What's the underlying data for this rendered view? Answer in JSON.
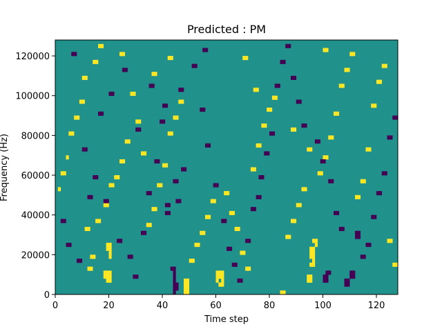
{
  "chart_data": {
    "type": "heatmap",
    "title": "Predicted : PM",
    "xlabel": "Time step",
    "ylabel": "Frequency (Hz)",
    "xlim": [
      0,
      128
    ],
    "ylim": [
      0,
      128000
    ],
    "x_ticks": [
      0,
      20,
      40,
      60,
      80,
      100,
      120
    ],
    "y_ticks": [
      0,
      20000,
      40000,
      60000,
      80000,
      100000,
      120000
    ],
    "x_tick_labels": [
      "0",
      "20",
      "40",
      "60",
      "80",
      "100",
      "120"
    ],
    "y_tick_labels": [
      "0",
      "20000",
      "40000",
      "60000",
      "80000",
      "100000",
      "120000"
    ],
    "rows": 64,
    "cols": 128,
    "background_value": 0,
    "colors": {
      "low": "#440154",
      "mid": "#21918c",
      "high": "#fde725"
    },
    "high_cells": [
      [
        19,
        5
      ],
      [
        20,
        5
      ],
      [
        19,
        4
      ],
      [
        20,
        4
      ],
      [
        18,
        5
      ],
      [
        18,
        4
      ],
      [
        19,
        3
      ],
      [
        20,
        3
      ],
      [
        60,
        5
      ],
      [
        61,
        5
      ],
      [
        62,
        5
      ],
      [
        60,
        4
      ],
      [
        61,
        4
      ],
      [
        62,
        4
      ],
      [
        60,
        3
      ],
      [
        62,
        3
      ],
      [
        61,
        2
      ],
      [
        62,
        2
      ],
      [
        95,
        11
      ],
      [
        96,
        11
      ],
      [
        95,
        10
      ],
      [
        96,
        10
      ],
      [
        95,
        9
      ],
      [
        96,
        9
      ],
      [
        96,
        8
      ],
      [
        95,
        7
      ],
      [
        96,
        7
      ],
      [
        94,
        4
      ],
      [
        95,
        4
      ],
      [
        94,
        3
      ],
      [
        95,
        3
      ],
      [
        96,
        13
      ],
      [
        97,
        13
      ],
      [
        97,
        12
      ],
      [
        19,
        12
      ],
      [
        20,
        12
      ],
      [
        19,
        11
      ],
      [
        20,
        11
      ],
      [
        20,
        10
      ],
      [
        20,
        9
      ],
      [
        13,
        9
      ],
      [
        14,
        9
      ],
      [
        12,
        6
      ],
      [
        13,
        6
      ],
      [
        11,
        16
      ],
      [
        12,
        16
      ],
      [
        15,
        18
      ],
      [
        16,
        18
      ],
      [
        18,
        22
      ],
      [
        19,
        22
      ],
      [
        20,
        27
      ],
      [
        21,
        27
      ],
      [
        22,
        29
      ],
      [
        23,
        29
      ],
      [
        24,
        33
      ],
      [
        25,
        33
      ],
      [
        26,
        38
      ],
      [
        27,
        38
      ],
      [
        28,
        50
      ],
      [
        29,
        50
      ],
      [
        30,
        43
      ],
      [
        31,
        43
      ],
      [
        32,
        35
      ],
      [
        33,
        35
      ],
      [
        34,
        17
      ],
      [
        35,
        17
      ],
      [
        36,
        21
      ],
      [
        37,
        21
      ],
      [
        38,
        27
      ],
      [
        39,
        27
      ],
      [
        40,
        32
      ],
      [
        41,
        32
      ],
      [
        42,
        40
      ],
      [
        43,
        40
      ],
      [
        44,
        44
      ],
      [
        45,
        44
      ],
      [
        46,
        48
      ],
      [
        47,
        48
      ],
      [
        48,
        2
      ],
      [
        49,
        2
      ],
      [
        48,
        3
      ],
      [
        49,
        3
      ],
      [
        48,
        1
      ],
      [
        49,
        1
      ],
      [
        48,
        0
      ],
      [
        49,
        0
      ],
      [
        50,
        8
      ],
      [
        51,
        8
      ],
      [
        52,
        12
      ],
      [
        53,
        12
      ],
      [
        54,
        15
      ],
      [
        55,
        15
      ],
      [
        56,
        19
      ],
      [
        57,
        19
      ],
      [
        58,
        23
      ],
      [
        59,
        23
      ],
      [
        63,
        25
      ],
      [
        64,
        25
      ],
      [
        65,
        20
      ],
      [
        66,
        20
      ],
      [
        67,
        16
      ],
      [
        68,
        16
      ],
      [
        69,
        10
      ],
      [
        70,
        10
      ],
      [
        71,
        6
      ],
      [
        72,
        6
      ],
      [
        73,
        31
      ],
      [
        74,
        31
      ],
      [
        75,
        37
      ],
      [
        76,
        37
      ],
      [
        77,
        42
      ],
      [
        78,
        42
      ],
      [
        79,
        46
      ],
      [
        80,
        46
      ],
      [
        81,
        49
      ],
      [
        82,
        49
      ],
      [
        84,
        0
      ],
      [
        85,
        0
      ],
      [
        86,
        14
      ],
      [
        87,
        14
      ],
      [
        88,
        18
      ],
      [
        89,
        18
      ],
      [
        90,
        22
      ],
      [
        91,
        22
      ],
      [
        92,
        26
      ],
      [
        93,
        26
      ],
      [
        98,
        30
      ],
      [
        99,
        30
      ],
      [
        100,
        34
      ],
      [
        101,
        34
      ],
      [
        102,
        39
      ],
      [
        103,
        39
      ],
      [
        104,
        45
      ],
      [
        105,
        45
      ],
      [
        106,
        52
      ],
      [
        107,
        52
      ],
      [
        108,
        56
      ],
      [
        109,
        56
      ],
      [
        110,
        60
      ],
      [
        111,
        60
      ],
      [
        112,
        24
      ],
      [
        113,
        24
      ],
      [
        114,
        28
      ],
      [
        115,
        28
      ],
      [
        116,
        36
      ],
      [
        117,
        36
      ],
      [
        118,
        47
      ],
      [
        119,
        47
      ],
      [
        120,
        53
      ],
      [
        121,
        53
      ],
      [
        122,
        57
      ],
      [
        123,
        57
      ],
      [
        124,
        13
      ],
      [
        125,
        13
      ],
      [
        126,
        7
      ],
      [
        127,
        7
      ],
      [
        5,
        40
      ],
      [
        6,
        40
      ],
      [
        7,
        44
      ],
      [
        8,
        44
      ],
      [
        9,
        48
      ],
      [
        10,
        48
      ],
      [
        2,
        30
      ],
      [
        3,
        30
      ],
      [
        4,
        34
      ],
      [
        1,
        26
      ],
      [
        14,
        58
      ],
      [
        15,
        58
      ],
      [
        16,
        62
      ],
      [
        17,
        62
      ],
      [
        10,
        54
      ],
      [
        11,
        54
      ],
      [
        24,
        60
      ],
      [
        25,
        60
      ],
      [
        36,
        55
      ],
      [
        37,
        55
      ],
      [
        42,
        59
      ],
      [
        43,
        59
      ],
      [
        70,
        59
      ],
      [
        71,
        59
      ],
      [
        74,
        51
      ],
      [
        75,
        51
      ],
      [
        88,
        41
      ],
      [
        89,
        41
      ],
      [
        94,
        36
      ],
      [
        95,
        36
      ],
      [
        100,
        61
      ],
      [
        101,
        61
      ]
    ],
    "low_cells": [
      [
        41,
        22
      ],
      [
        42,
        22
      ],
      [
        41,
        20
      ],
      [
        42,
        20
      ],
      [
        45,
        23
      ],
      [
        46,
        23
      ],
      [
        44,
        28
      ],
      [
        45,
        28
      ],
      [
        47,
        31
      ],
      [
        48,
        31
      ],
      [
        43,
        6
      ],
      [
        44,
        6
      ],
      [
        44,
        5
      ],
      [
        44,
        4
      ],
      [
        44,
        3
      ],
      [
        44,
        2
      ],
      [
        44,
        1
      ],
      [
        44,
        0
      ],
      [
        45,
        1
      ],
      [
        45,
        2
      ],
      [
        100,
        3
      ],
      [
        101,
        3
      ],
      [
        100,
        4
      ],
      [
        101,
        4
      ],
      [
        101,
        5
      ],
      [
        102,
        5
      ],
      [
        108,
        2
      ],
      [
        109,
        2
      ],
      [
        108,
        3
      ],
      [
        109,
        3
      ],
      [
        112,
        15
      ],
      [
        113,
        15
      ],
      [
        112,
        14
      ],
      [
        113,
        14
      ],
      [
        110,
        4
      ],
      [
        111,
        4
      ],
      [
        110,
        5
      ],
      [
        111,
        5
      ],
      [
        6,
        60
      ],
      [
        7,
        60
      ],
      [
        10,
        36
      ],
      [
        11,
        36
      ],
      [
        14,
        29
      ],
      [
        15,
        29
      ],
      [
        18,
        23
      ],
      [
        19,
        23
      ],
      [
        23,
        13
      ],
      [
        24,
        13
      ],
      [
        27,
        9
      ],
      [
        28,
        9
      ],
      [
        29,
        4
      ],
      [
        30,
        4
      ],
      [
        32,
        15
      ],
      [
        33,
        15
      ],
      [
        34,
        25
      ],
      [
        35,
        25
      ],
      [
        37,
        33
      ],
      [
        38,
        33
      ],
      [
        39,
        43
      ],
      [
        40,
        43
      ],
      [
        46,
        51
      ],
      [
        47,
        51
      ],
      [
        51,
        57
      ],
      [
        52,
        57
      ],
      [
        54,
        46
      ],
      [
        55,
        46
      ],
      [
        56,
        37
      ],
      [
        57,
        37
      ],
      [
        59,
        27
      ],
      [
        60,
        27
      ],
      [
        62,
        18
      ],
      [
        63,
        18
      ],
      [
        64,
        11
      ],
      [
        65,
        11
      ],
      [
        66,
        7
      ],
      [
        67,
        7
      ],
      [
        68,
        3
      ],
      [
        69,
        3
      ],
      [
        71,
        13
      ],
      [
        72,
        13
      ],
      [
        73,
        21
      ],
      [
        74,
        21
      ],
      [
        76,
        29
      ],
      [
        77,
        29
      ],
      [
        78,
        35
      ],
      [
        79,
        35
      ],
      [
        80,
        40
      ],
      [
        81,
        40
      ],
      [
        82,
        52
      ],
      [
        83,
        52
      ],
      [
        84,
        58
      ],
      [
        85,
        58
      ],
      [
        86,
        62
      ],
      [
        87,
        62
      ],
      [
        88,
        54
      ],
      [
        89,
        54
      ],
      [
        90,
        48
      ],
      [
        91,
        48
      ],
      [
        92,
        42
      ],
      [
        93,
        42
      ],
      [
        97,
        38
      ],
      [
        98,
        38
      ],
      [
        99,
        33
      ],
      [
        100,
        33
      ],
      [
        102,
        28
      ],
      [
        103,
        28
      ],
      [
        104,
        20
      ],
      [
        105,
        20
      ],
      [
        106,
        16
      ],
      [
        107,
        16
      ],
      [
        114,
        9
      ],
      [
        115,
        9
      ],
      [
        116,
        12
      ],
      [
        117,
        12
      ],
      [
        118,
        19
      ],
      [
        119,
        19
      ],
      [
        120,
        25
      ],
      [
        121,
        25
      ],
      [
        122,
        30
      ],
      [
        123,
        30
      ],
      [
        124,
        39
      ],
      [
        125,
        39
      ],
      [
        126,
        44
      ],
      [
        127,
        44
      ],
      [
        2,
        18
      ],
      [
        3,
        18
      ],
      [
        4,
        12
      ],
      [
        5,
        12
      ],
      [
        8,
        8
      ],
      [
        9,
        8
      ],
      [
        12,
        24
      ],
      [
        13,
        24
      ],
      [
        16,
        45
      ],
      [
        17,
        45
      ],
      [
        20,
        50
      ],
      [
        21,
        50
      ],
      [
        25,
        56
      ],
      [
        26,
        56
      ],
      [
        30,
        41
      ],
      [
        31,
        41
      ],
      [
        35,
        52
      ],
      [
        36,
        52
      ],
      [
        40,
        47
      ],
      [
        41,
        47
      ],
      [
        55,
        61
      ],
      [
        56,
        61
      ],
      [
        75,
        24
      ],
      [
        76,
        24
      ]
    ]
  }
}
